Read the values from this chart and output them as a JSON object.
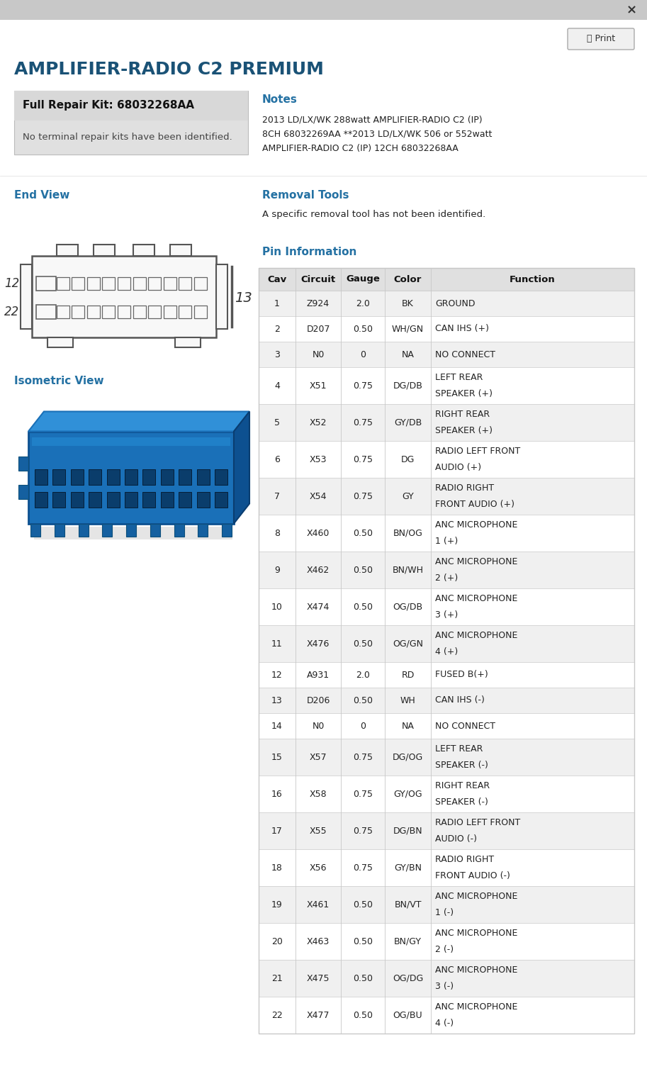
{
  "title": "AMPLIFIER-RADIO C2 PREMIUM",
  "repair_kit_label": "Full Repair Kit: 68032268AA",
  "repair_kit_note": "No terminal repair kits have been identified.",
  "notes_title": "Notes",
  "notes_text_lines": [
    "2013 LD/LX/WK 288watt AMPLIFIER-RADIO C2 (IP)",
    "8CH 68032269AA **2013 LD/LX/WK 506 or 552watt",
    "AMPLIFIER-RADIO C2 (IP) 12CH 68032268AA"
  ],
  "end_view_label": "End View",
  "removal_tools_title": "Removal Tools",
  "removal_tools_text": "A specific removal tool has not been identified.",
  "isometric_view_label": "Isometric View",
  "pin_info_title": "Pin Information",
  "col_headers": [
    "Cav",
    "Circuit",
    "Gauge",
    "Color",
    "Function"
  ],
  "pin_data": [
    [
      "1",
      "Z924",
      "2.0",
      "BK",
      "GROUND"
    ],
    [
      "2",
      "D207",
      "0.50",
      "WH/GN",
      "CAN IHS (+)"
    ],
    [
      "3",
      "N0",
      "0",
      "NA",
      "NO CONNECT"
    ],
    [
      "4",
      "X51",
      "0.75",
      "DG/DB",
      "LEFT REAR\nSPEAKER (+)"
    ],
    [
      "5",
      "X52",
      "0.75",
      "GY/DB",
      "RIGHT REAR\nSPEAKER (+)"
    ],
    [
      "6",
      "X53",
      "0.75",
      "DG",
      "RADIO LEFT FRONT\nAUDIO (+)"
    ],
    [
      "7",
      "X54",
      "0.75",
      "GY",
      "RADIO RIGHT\nFRONT AUDIO (+)"
    ],
    [
      "8",
      "X460",
      "0.50",
      "BN/OG",
      "ANC MICROPHONE\n1 (+)"
    ],
    [
      "9",
      "X462",
      "0.50",
      "BN/WH",
      "ANC MICROPHONE\n2 (+)"
    ],
    [
      "10",
      "X474",
      "0.50",
      "OG/DB",
      "ANC MICROPHONE\n3 (+)"
    ],
    [
      "11",
      "X476",
      "0.50",
      "OG/GN",
      "ANC MICROPHONE\n4 (+)"
    ],
    [
      "12",
      "A931",
      "2.0",
      "RD",
      "FUSED B(+)"
    ],
    [
      "13",
      "D206",
      "0.50",
      "WH",
      "CAN IHS (-)"
    ],
    [
      "14",
      "N0",
      "0",
      "NA",
      "NO CONNECT"
    ],
    [
      "15",
      "X57",
      "0.75",
      "DG/OG",
      "LEFT REAR\nSPEAKER (-)"
    ],
    [
      "16",
      "X58",
      "0.75",
      "GY/OG",
      "RIGHT REAR\nSPEAKER (-)"
    ],
    [
      "17",
      "X55",
      "0.75",
      "DG/BN",
      "RADIO LEFT FRONT\nAUDIO (-)"
    ],
    [
      "18",
      "X56",
      "0.75",
      "GY/BN",
      "RADIO RIGHT\nFRONT AUDIO (-)"
    ],
    [
      "19",
      "X461",
      "0.50",
      "BN/VT",
      "ANC MICROPHONE\n1 (-)"
    ],
    [
      "20",
      "X463",
      "0.50",
      "BN/GY",
      "ANC MICROPHONE\n2 (-)"
    ],
    [
      "21",
      "X475",
      "0.50",
      "OG/DG",
      "ANC MICROPHONE\n3 (-)"
    ],
    [
      "22",
      "X477",
      "0.50",
      "OG/BU",
      "ANC MICROPHONE\n4 (-)"
    ]
  ],
  "bg_color": "#ffffff",
  "header_bar_color": "#e0e0e0",
  "title_color": "#1a5276",
  "blue_text_color": "#2471a3",
  "row_alt_color": "#f0f0f0",
  "row_normal_color": "#ffffff",
  "border_color": "#c8c8c8",
  "top_bar_color": "#c8c8c8",
  "repair_kit_bg": "#e0e0e0",
  "print_btn_bg": "#f0f0f0",
  "print_btn_border": "#aaaaaa"
}
